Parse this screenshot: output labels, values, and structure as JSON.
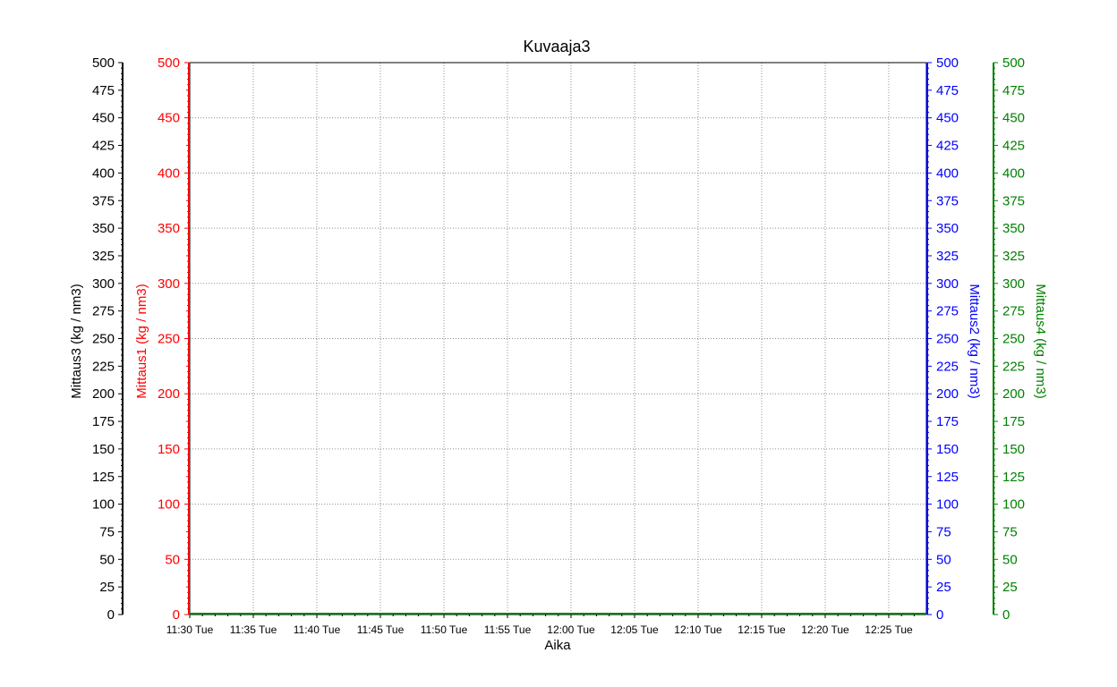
{
  "chart_data": {
    "type": "line",
    "title": "Kuvaaja3",
    "xlabel": "Aika",
    "x_tick_labels": [
      "11:30 Tue",
      "11:35 Tue",
      "11:40 Tue",
      "11:45 Tue",
      "11:50 Tue",
      "11:55 Tue",
      "12:00 Tue",
      "12:05 Tue",
      "12:10 Tue",
      "12:15 Tue",
      "12:20 Tue",
      "12:25 Tue"
    ],
    "y_ticks": [
      0,
      25,
      50,
      75,
      100,
      125,
      150,
      175,
      200,
      225,
      250,
      275,
      300,
      325,
      350,
      375,
      400,
      425,
      450,
      475,
      500
    ],
    "ylim": [
      0,
      500
    ],
    "grid": true,
    "axes": [
      {
        "id": "mittaus3",
        "label": "Mittaus3    (kg / nm3)",
        "color": "#000000",
        "side": "left-outer",
        "tick_labels": [
          "0",
          "25",
          "50",
          "75",
          "100",
          "125",
          "150",
          "175",
          "200",
          "225",
          "250",
          "275",
          "300",
          "325",
          "350",
          "375",
          "400",
          "425",
          "450",
          "475",
          "500"
        ]
      },
      {
        "id": "mittaus1",
        "label": "Mittaus1    (kg / nm3)",
        "color": "#ff0000",
        "side": "left-inner",
        "tick_labels": [
          "0",
          "50",
          "100",
          "150",
          "200",
          "250",
          "300",
          "350",
          "400",
          "450",
          "500"
        ]
      },
      {
        "id": "mittaus2",
        "label": "Mittaus2    (kg / nm3)",
        "color": "#0000ff",
        "side": "right-inner",
        "tick_labels": [
          "0",
          "25",
          "50",
          "75",
          "100",
          "125",
          "150",
          "175",
          "200",
          "225",
          "250",
          "275",
          "300",
          "325",
          "350",
          "375",
          "400",
          "425",
          "450",
          "475",
          "500"
        ]
      },
      {
        "id": "mittaus4",
        "label": "Mittaus4    (kg / nm3)",
        "color": "#008000",
        "side": "right-outer",
        "tick_labels": [
          "0",
          "25",
          "50",
          "75",
          "100",
          "125",
          "150",
          "175",
          "200",
          "225",
          "250",
          "275",
          "300",
          "325",
          "350",
          "375",
          "400",
          "425",
          "450",
          "475",
          "500"
        ]
      }
    ],
    "series": [
      {
        "values": [
          0,
          0,
          0,
          0,
          0,
          0,
          0,
          0,
          0,
          0,
          0,
          0
        ],
        "color": "#008000"
      }
    ]
  }
}
